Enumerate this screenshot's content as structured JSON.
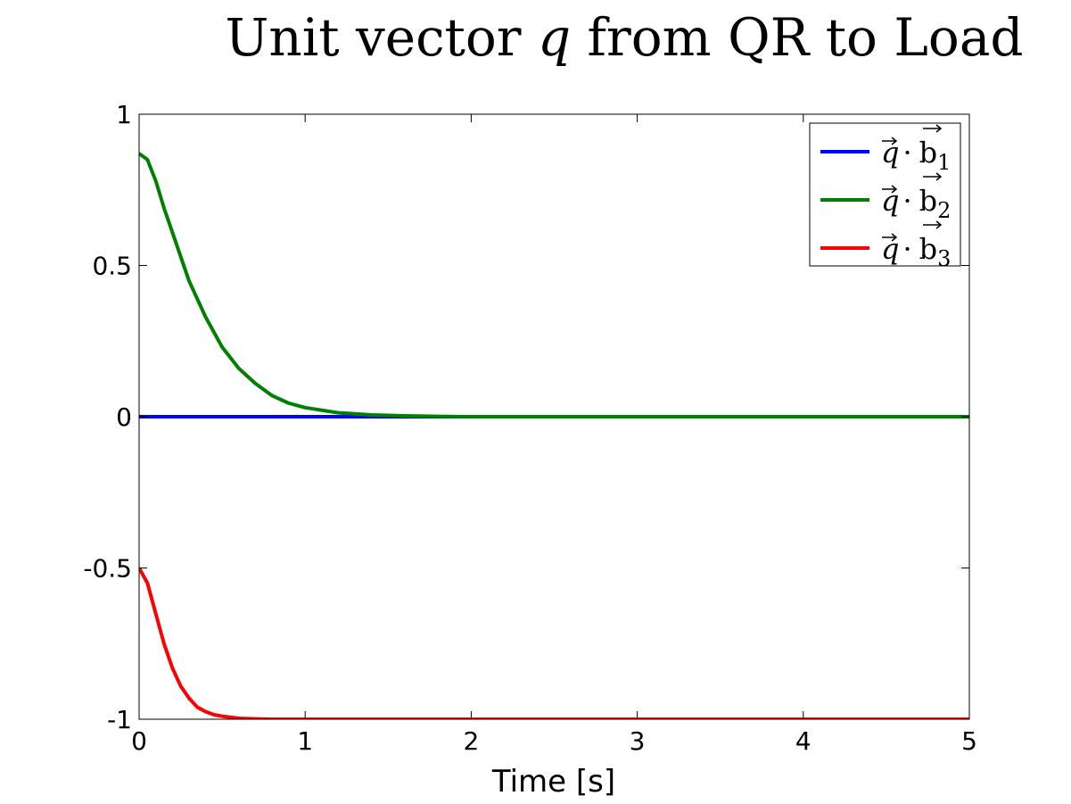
{
  "chart_data": {
    "type": "line",
    "title": {
      "prefix": "Unit vector ",
      "symbol": "q",
      "suffix": " from QR to Load"
    },
    "xlabel": "Time [s]",
    "ylabel": "",
    "xlim": [
      0,
      5
    ],
    "ylim": [
      -1,
      1
    ],
    "xticks": [
      0,
      1,
      2,
      3,
      4,
      5
    ],
    "xtick_labels": [
      "0",
      "1",
      "2",
      "3",
      "4",
      "5"
    ],
    "yticks": [
      -1,
      -0.5,
      0,
      0.5,
      1
    ],
    "ytick_labels": [
      "-1",
      "-0.5",
      "0",
      "0.5",
      "1"
    ],
    "grid": false,
    "legend_position": "top-right",
    "series": [
      {
        "name": "q·b1",
        "label_parts": {
          "q": "q",
          "dot": "·",
          "b": "b",
          "sub": "1"
        },
        "color": "#0000ff",
        "x": [
          0,
          5
        ],
        "y": [
          0,
          0
        ]
      },
      {
        "name": "q·b2",
        "label_parts": {
          "q": "q",
          "dot": "·",
          "b": "b",
          "sub": "2"
        },
        "color": "#008000",
        "x": [
          0,
          0.05,
          0.1,
          0.15,
          0.2,
          0.3,
          0.4,
          0.5,
          0.6,
          0.7,
          0.8,
          0.9,
          1.0,
          1.2,
          1.4,
          1.6,
          1.8,
          2.0,
          2.5,
          3.0,
          4.0,
          5.0
        ],
        "y": [
          0.87,
          0.85,
          0.78,
          0.69,
          0.61,
          0.45,
          0.33,
          0.23,
          0.16,
          0.11,
          0.07,
          0.045,
          0.03,
          0.013,
          0.006,
          0.003,
          0.001,
          0.0,
          0.0,
          0.0,
          0.0,
          0.0
        ]
      },
      {
        "name": "q·b3",
        "label_parts": {
          "q": "q",
          "dot": "·",
          "b": "b",
          "sub": "3"
        },
        "color": "#ff0000",
        "x": [
          0,
          0.05,
          0.1,
          0.15,
          0.2,
          0.25,
          0.3,
          0.35,
          0.4,
          0.45,
          0.5,
          0.6,
          0.7,
          0.8,
          1.0,
          2.0,
          3.0,
          4.0,
          5.0
        ],
        "y": [
          -0.5,
          -0.55,
          -0.65,
          -0.75,
          -0.83,
          -0.89,
          -0.93,
          -0.96,
          -0.975,
          -0.985,
          -0.99,
          -0.997,
          -0.999,
          -1.0,
          -1.0,
          -1.0,
          -1.0,
          -1.0,
          -1.0
        ]
      }
    ]
  }
}
